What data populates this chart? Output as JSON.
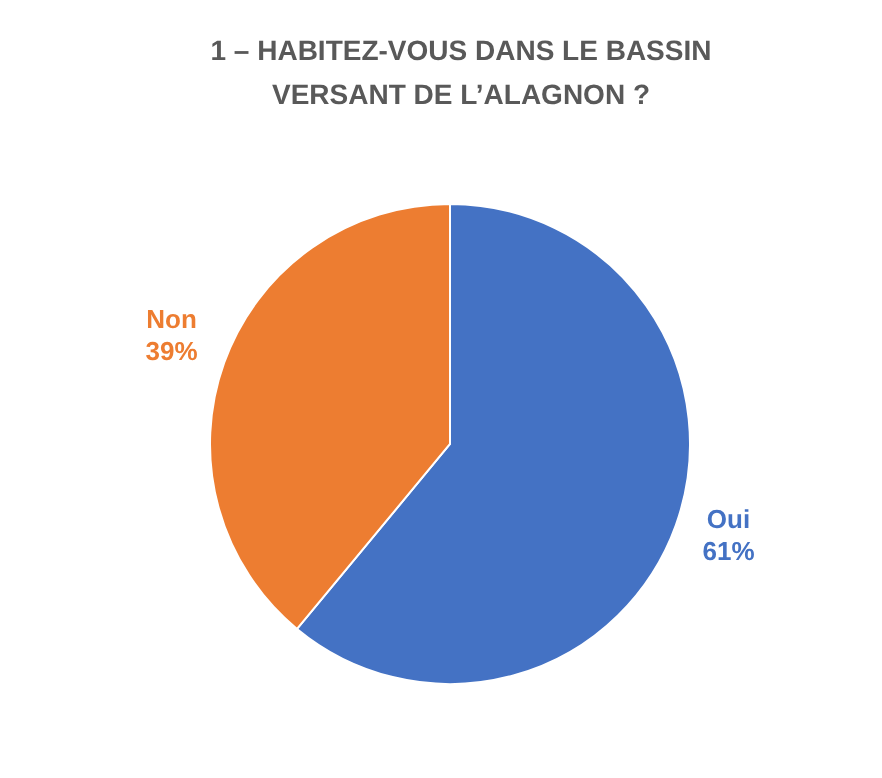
{
  "chart_data": {
    "type": "pie",
    "title": "1 – HABITEZ-VOUS DANS LE BASSIN VERSANT DE L’ALAGNON ?",
    "categories": [
      "Oui",
      "Non"
    ],
    "values": [
      61,
      39
    ],
    "colors": [
      "#4472c4",
      "#ed7d31"
    ],
    "value_labels": [
      "61%",
      "39%"
    ],
    "legend": false
  }
}
